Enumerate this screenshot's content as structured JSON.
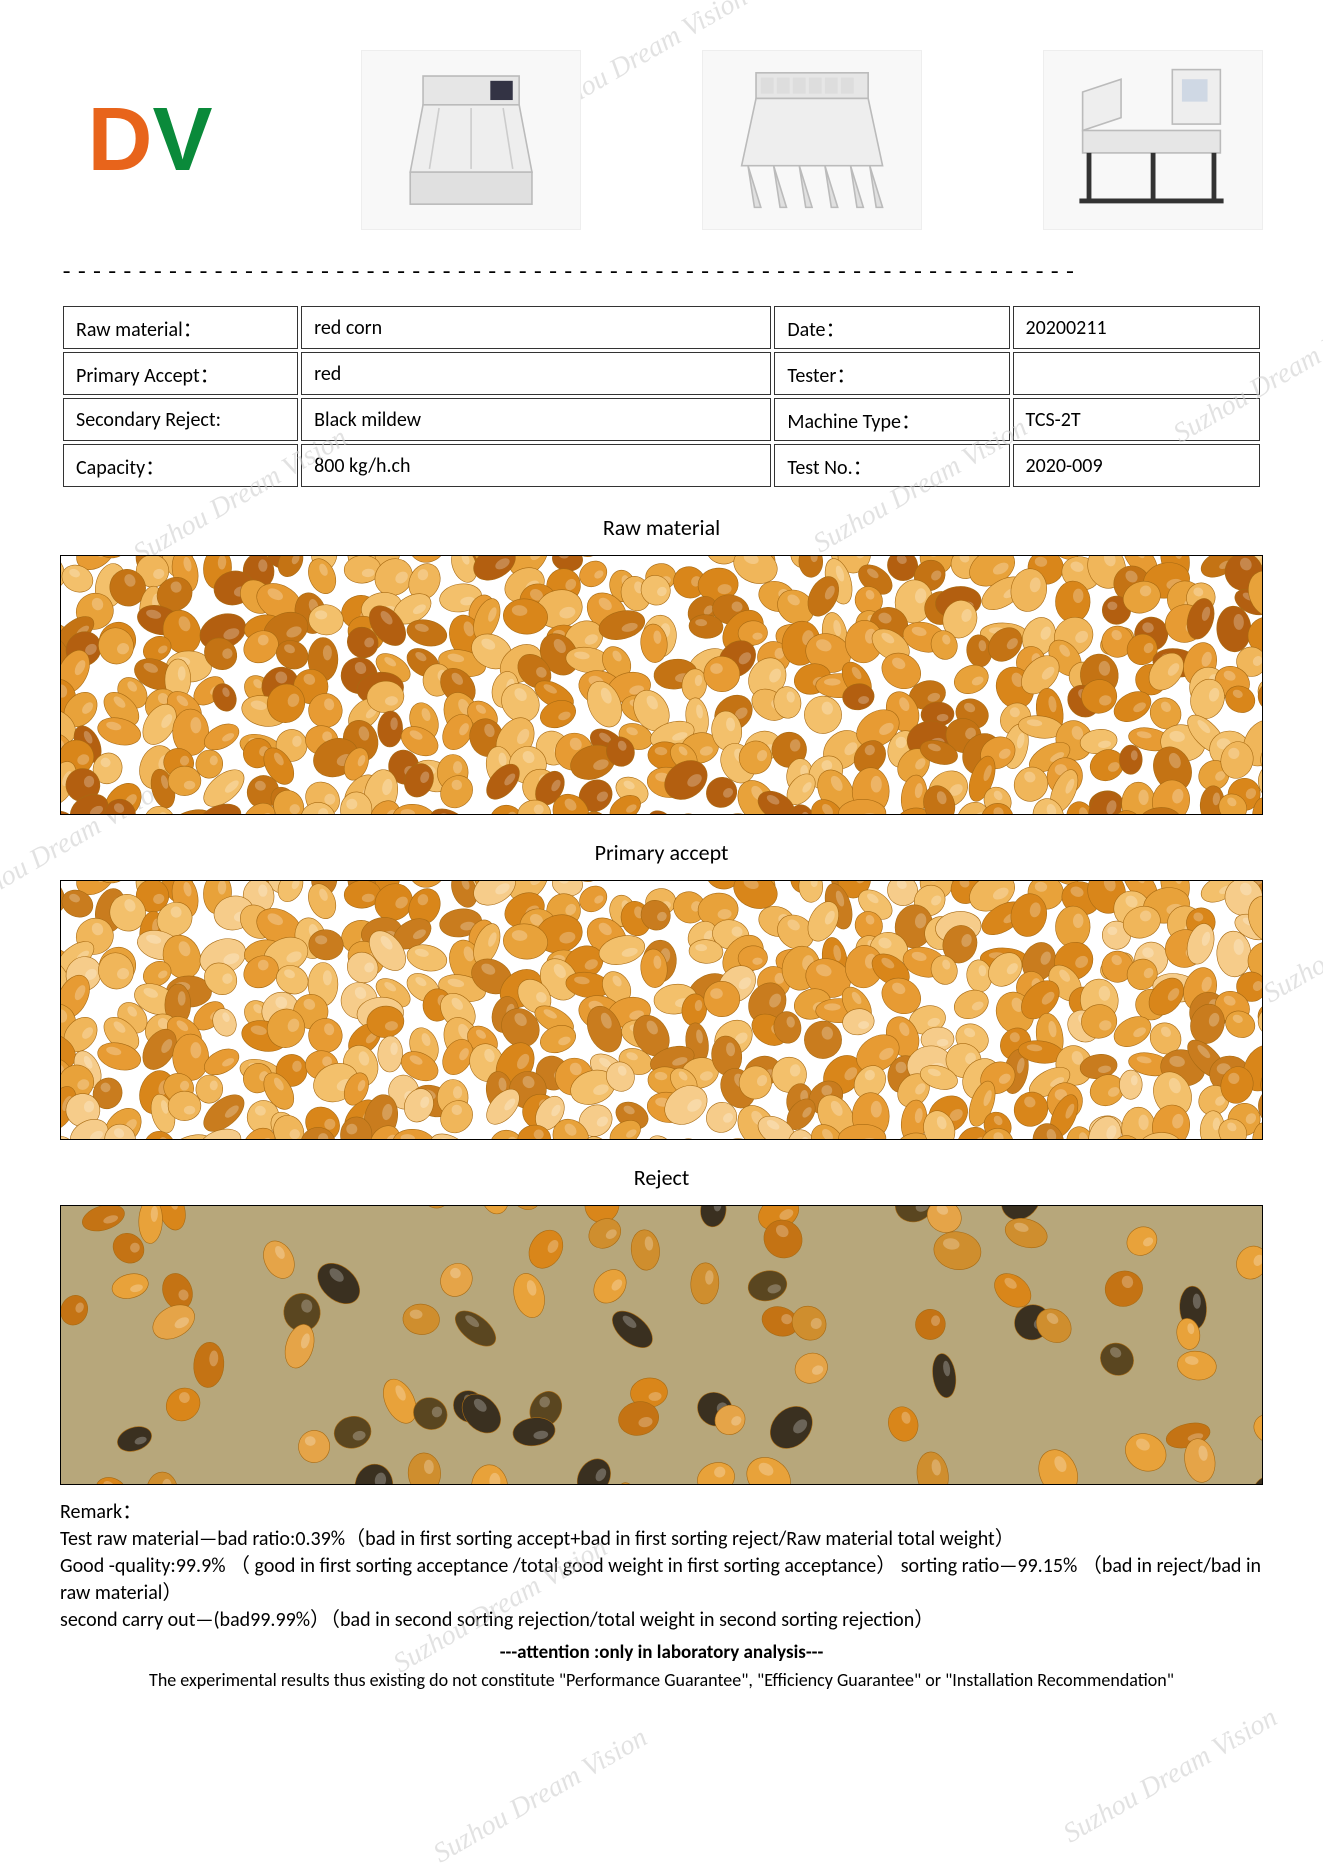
{
  "watermark_text": "Suzhou Dream Vision",
  "logo": {
    "letters": "DV"
  },
  "separator_char": "-",
  "info_table": {
    "rows": [
      {
        "l1": "Raw material：",
        "v1": "red corn",
        "l2": "Date：",
        "v2": "20200211"
      },
      {
        "l1": "Primary Accept：",
        "v1": "red",
        "l2": "Tester：",
        "v2": ""
      },
      {
        "l1": "Secondary Reject:",
        "v1": "Black mildew",
        "l2": "Machine Type：",
        "v2": "TCS-2T"
      },
      {
        "l1": "Capacity：",
        "v1": "800 kg/h.ch",
        "l2": "Test No.：",
        "v2": "2020-009"
      }
    ]
  },
  "sections": {
    "raw": "Raw material",
    "accept": "Primary accept",
    "reject": "Reject"
  },
  "corn_colors": {
    "raw": [
      "#d9861a",
      "#e8a23a",
      "#f0b65a",
      "#c47314",
      "#e79b33",
      "#f3c06b",
      "#b35f10"
    ],
    "accept": [
      "#e8a23a",
      "#f0b65a",
      "#d9861a",
      "#f3c06b",
      "#e79b33",
      "#c97c1e",
      "#f6cc8a"
    ],
    "reject_bg": "#b7a77b",
    "reject": [
      "#cf8e2e",
      "#e8a23a",
      "#d9861a",
      "#5a4620",
      "#c47314",
      "#3a3020",
      "#e5a448"
    ]
  },
  "remark": {
    "heading": "Remark：",
    "line1": "Test raw material—bad ratio:0.39%（bad in first sorting accept+bad in first sorting reject/Raw material total weight）",
    "line2": "Good -quality:99.9% （ good in first sorting acceptance /total good weight in first sorting acceptance）  sorting ratio—99.15% （bad in reject/bad in raw material）",
    "line3": "second carry out—(bad99.99%）（bad in second sorting rejection/total weight in second sorting rejection）",
    "attention": "---attention :only in laboratory analysis---",
    "disclaimer": "The experimental results thus existing do not constitute \"Performance Guarantee\", \"Efficiency Guarantee\" or \"Installation Recommendation\""
  }
}
